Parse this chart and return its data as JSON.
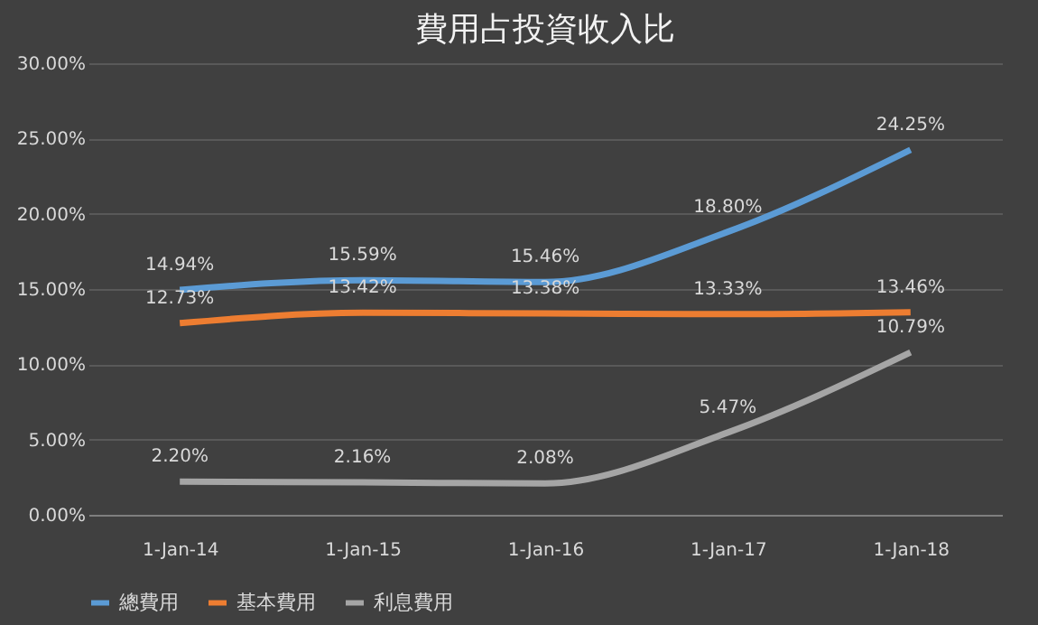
{
  "chart_data": {
    "type": "line",
    "title": "費用占投資收入比",
    "categories": [
      "1-Jan-14",
      "1-Jan-15",
      "1-Jan-16",
      "1-Jan-17",
      "1-Jan-18"
    ],
    "series": [
      {
        "name": "總費用",
        "color": "#5b9bd5",
        "values": [
          14.94,
          15.59,
          15.46,
          18.8,
          24.25
        ],
        "value_labels": [
          "14.94%",
          "15.59%",
          "15.46%",
          "18.80%",
          "24.25%"
        ]
      },
      {
        "name": "基本費用",
        "color": "#ed7d31",
        "values": [
          12.73,
          13.42,
          13.38,
          13.33,
          13.46
        ],
        "value_labels": [
          "12.73%",
          "13.42%",
          "13.38%",
          "13.33%",
          "13.46%"
        ]
      },
      {
        "name": "利息費用",
        "color": "#a5a5a5",
        "values": [
          2.2,
          2.16,
          2.08,
          5.47,
          10.79
        ],
        "value_labels": [
          "2.20%",
          "2.16%",
          "2.08%",
          "5.47%",
          "10.79%"
        ]
      }
    ],
    "ylim": [
      0,
      30
    ],
    "yticks": [
      {
        "value": 0,
        "label": "0.00%"
      },
      {
        "value": 5,
        "label": "5.00%"
      },
      {
        "value": 10,
        "label": "10.00%"
      },
      {
        "value": 15,
        "label": "15.00%"
      },
      {
        "value": 20,
        "label": "20.00%"
      },
      {
        "value": 25,
        "label": "25.00%"
      },
      {
        "value": 30,
        "label": "30.00%"
      }
    ],
    "grid": "y",
    "legend": "bottom",
    "line_style": "solid",
    "marker": "none"
  }
}
